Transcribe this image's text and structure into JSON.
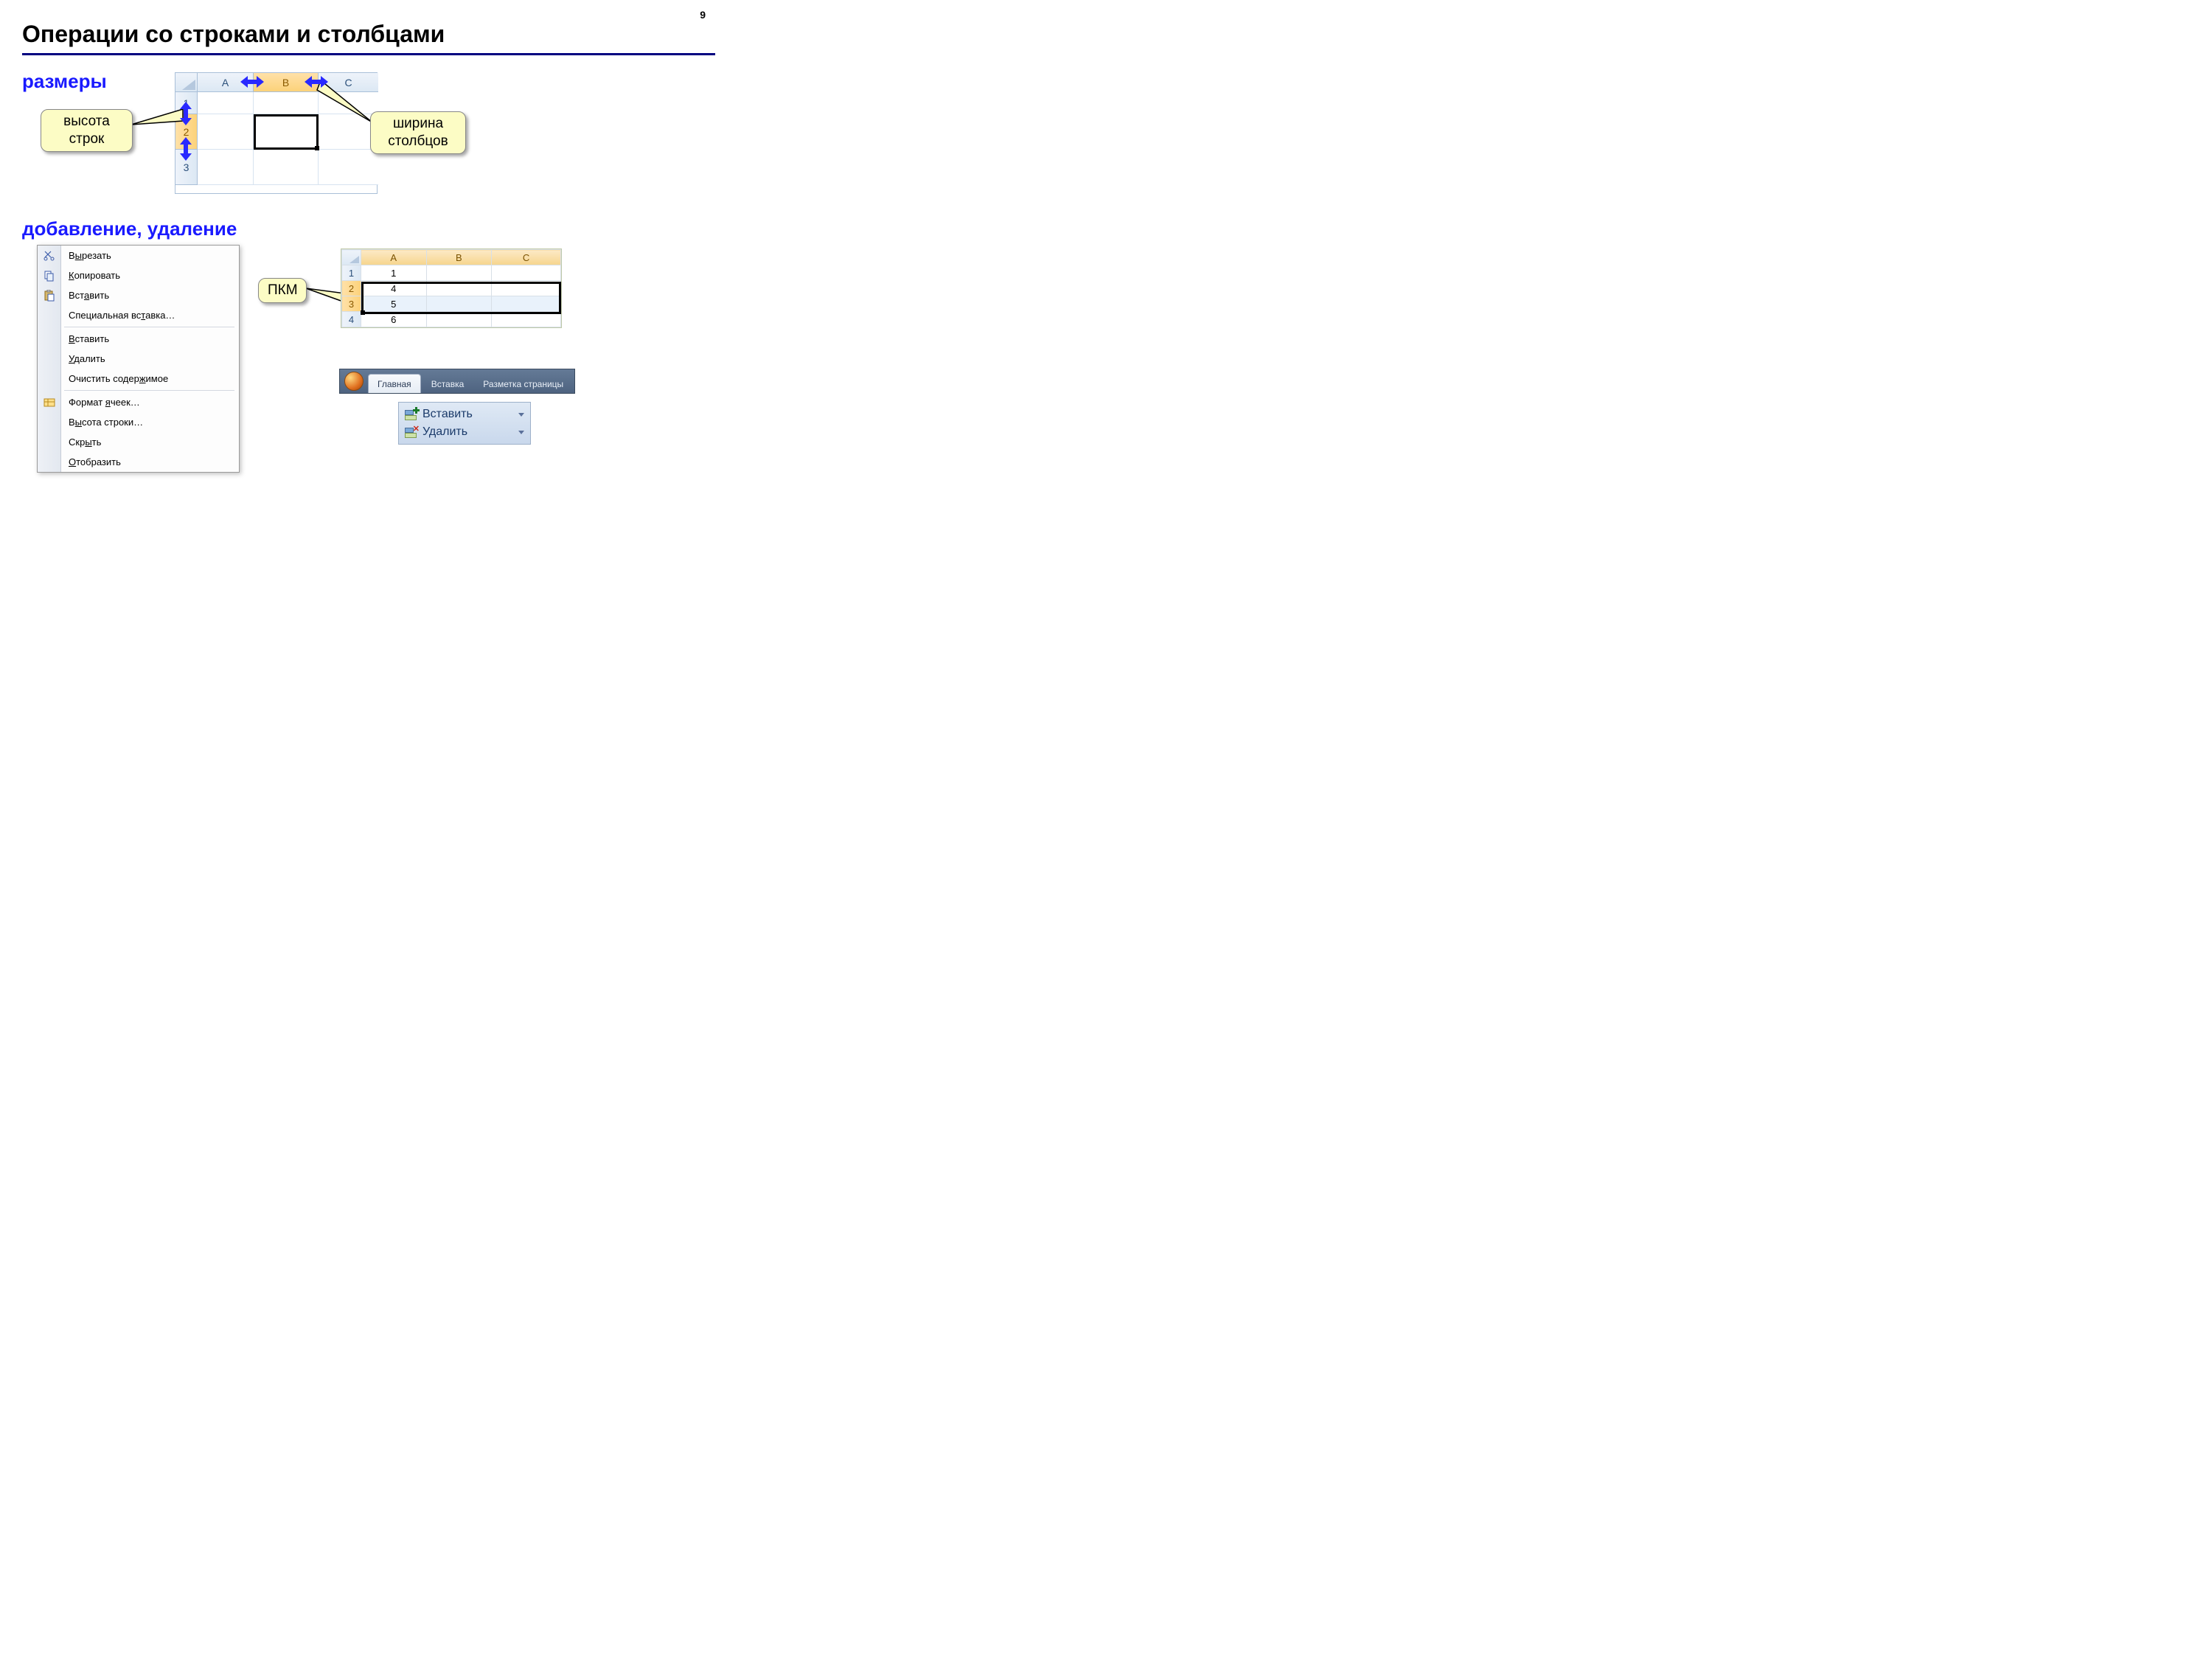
{
  "pageNumber": "9",
  "title": "Операции со строками и столбцами",
  "subtitle1": "размеры",
  "subtitle2": "добавление, удаление",
  "callout_rowHeight_l1": "высота",
  "callout_rowHeight_l2": "строк",
  "callout_colWidth_l1": "ширина",
  "callout_colWidth_l2": "столбцов",
  "callout_pkm": "ПКМ",
  "sheet1": {
    "cols": [
      "A",
      "B",
      "C"
    ],
    "rows": [
      "1",
      "2",
      "3"
    ]
  },
  "sheet2": {
    "cols": [
      "A",
      "B",
      "C"
    ],
    "rows": [
      {
        "n": "1",
        "a": "1",
        "b": "",
        "c": ""
      },
      {
        "n": "2",
        "a": "4",
        "b": "",
        "c": ""
      },
      {
        "n": "3",
        "a": "5",
        "b": "",
        "c": ""
      },
      {
        "n": "4",
        "a": "6",
        "b": "",
        "c": ""
      }
    ]
  },
  "contextMenu": {
    "cut": "Вырезать",
    "copy": "Копировать",
    "paste": "Вставить",
    "pasteSpecial": "Специальная вставка…",
    "insert": "Вставить",
    "delete": "Удалить",
    "clear": "Очистить содержимое",
    "format": "Формат ячеек…",
    "rowHeight": "Высота строки…",
    "hide": "Скрыть",
    "show": "Отобразить"
  },
  "ribbon": {
    "tabHome": "Главная",
    "tabInsert": "Вставка",
    "tabLayout": "Разметка страницы",
    "btnInsert": "Вставить",
    "btnDelete": "Удалить"
  },
  "colors": {
    "titleUnderline": "#000080",
    "subtitle": "#1a1aff",
    "calloutBg": "#fcfcc5",
    "headerBlue": "#dce8f4",
    "headerOrange": "#fcd27a",
    "arrowBlue": "#2929ff"
  }
}
